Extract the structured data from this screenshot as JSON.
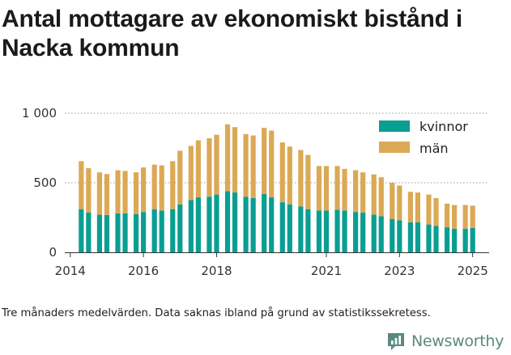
{
  "title": "Antal mottagare av ekonomiskt bistånd i Nacka kommun",
  "footnote": "Tre månaders medelvärden. Data saknas ibland på grund av statistikssekretess.",
  "brand": {
    "name": "Newsworthy",
    "icon": "newsworthy-logo-icon",
    "color": "#5a8a7e"
  },
  "colors": {
    "kvinnor": "#0a9e93",
    "man": "#dba955",
    "axis": "#333333",
    "grid": "#999999"
  },
  "chart_data": {
    "type": "bar",
    "stacked": true,
    "y_ticks": [
      {
        "value": 0,
        "label": "0"
      },
      {
        "value": 500,
        "label": "500"
      },
      {
        "value": 1000,
        "label": "1 000"
      }
    ],
    "x_ticks": [
      {
        "value": 2014,
        "label": "2014"
      },
      {
        "value": 2016,
        "label": "2016"
      },
      {
        "value": 2018,
        "label": "2018"
      },
      {
        "value": 2021,
        "label": "2021"
      },
      {
        "value": 2023,
        "label": "2023"
      },
      {
        "value": 2025,
        "label": "2025"
      }
    ],
    "ylim": [
      0,
      1000
    ],
    "legend_position": "top-right",
    "grid": "horizontal-dotted",
    "series": [
      {
        "name": "kvinnor",
        "color": "#0a9e93",
        "x": [
          2014.3,
          2014.5,
          2014.8,
          2015.0,
          2015.3,
          2015.5,
          2015.8,
          2016.0,
          2016.3,
          2016.5,
          2016.8,
          2017.0,
          2017.3,
          2017.5,
          2017.8,
          2018.0,
          2018.3,
          2018.5,
          2018.8,
          2019.0,
          2019.3,
          2019.5,
          2019.8,
          2020.0,
          2020.3,
          2020.5,
          2020.8,
          2021.0,
          2021.3,
          2021.5,
          2021.8,
          2022.0,
          2022.3,
          2022.5,
          2022.8,
          2023.0,
          2023.3,
          2023.5,
          2023.8,
          2024.0,
          2024.3,
          2024.5,
          2024.8,
          2025.0
        ],
        "values": [
          310,
          285,
          270,
          268,
          280,
          280,
          275,
          290,
          310,
          300,
          310,
          345,
          375,
          395,
          400,
          415,
          440,
          430,
          400,
          390,
          420,
          395,
          360,
          345,
          330,
          310,
          300,
          300,
          305,
          300,
          290,
          285,
          270,
          260,
          240,
          230,
          215,
          215,
          200,
          190,
          180,
          170,
          170,
          175
        ]
      },
      {
        "name": "män",
        "color": "#dba955",
        "x": [
          2014.3,
          2014.5,
          2014.8,
          2015.0,
          2015.3,
          2015.5,
          2015.8,
          2016.0,
          2016.3,
          2016.5,
          2016.8,
          2017.0,
          2017.3,
          2017.5,
          2017.8,
          2018.0,
          2018.3,
          2018.5,
          2018.8,
          2019.0,
          2019.3,
          2019.5,
          2019.8,
          2020.0,
          2020.3,
          2020.5,
          2020.8,
          2021.0,
          2021.3,
          2021.5,
          2021.8,
          2022.0,
          2022.3,
          2022.5,
          2022.8,
          2023.0,
          2023.3,
          2023.5,
          2023.8,
          2024.0,
          2024.3,
          2024.5,
          2024.8,
          2025.0
        ],
        "values": [
          345,
          320,
          305,
          295,
          310,
          305,
          300,
          320,
          320,
          325,
          345,
          385,
          390,
          410,
          420,
          430,
          480,
          470,
          450,
          450,
          475,
          480,
          430,
          415,
          405,
          390,
          320,
          320,
          315,
          300,
          300,
          290,
          290,
          280,
          260,
          250,
          220,
          215,
          215,
          200,
          170,
          170,
          170,
          160
        ]
      }
    ]
  }
}
